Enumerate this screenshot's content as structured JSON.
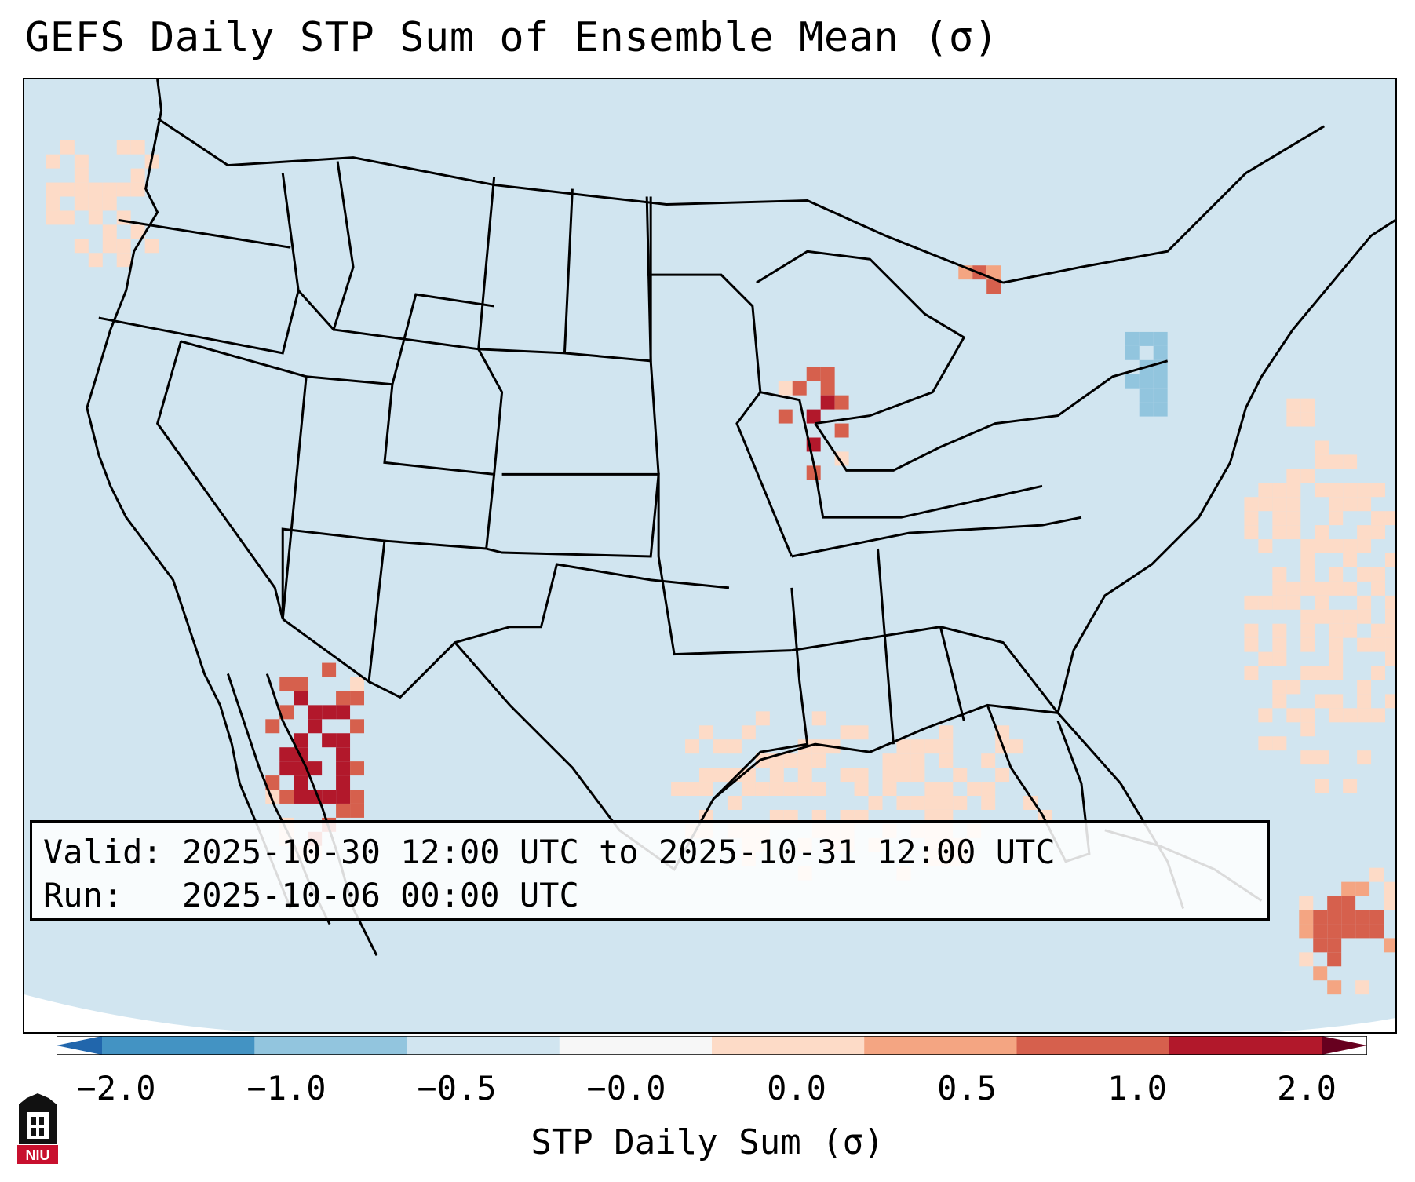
{
  "title": "GEFS Daily STP Sum of Ensemble Mean (σ)",
  "info": {
    "valid": "Valid: 2025-10-30 12:00 UTC to 2025-10-31 12:00 UTC",
    "run": "Run:   2025-10-06 00:00 UTC"
  },
  "colorbar": {
    "label": "STP Daily Sum (σ)",
    "ticks": [
      "−2.0",
      "−1.0",
      "−0.5",
      "−0.0",
      "0.0",
      "0.5",
      "1.0",
      "2.0"
    ],
    "colors": [
      "#4393c3",
      "#92c5de",
      "#d1e5f0",
      "#f7f7f7",
      "#fddbc7",
      "#f4a582",
      "#d6604d",
      "#b2182b"
    ],
    "extend_low_color": "#2166ac",
    "extend_high_color": "#67001f"
  },
  "map": {
    "background_color": "#d1e5f0",
    "region": "CONUS",
    "hotspots": [
      {
        "name": "Southeast California / Arizona border",
        "level": 2.0
      },
      {
        "name": "Iowa",
        "level": 2.0
      },
      {
        "name": "Michigan Upper Peninsula",
        "level": 1.0
      },
      {
        "name": "Western Atlantic near Bahamas",
        "level": 1.0
      },
      {
        "name": "Gulf of Mexico",
        "level": 0.25
      },
      {
        "name": "Pennsylvania / New York",
        "level": -0.75
      }
    ]
  },
  "logo": {
    "text": "NIU"
  }
}
